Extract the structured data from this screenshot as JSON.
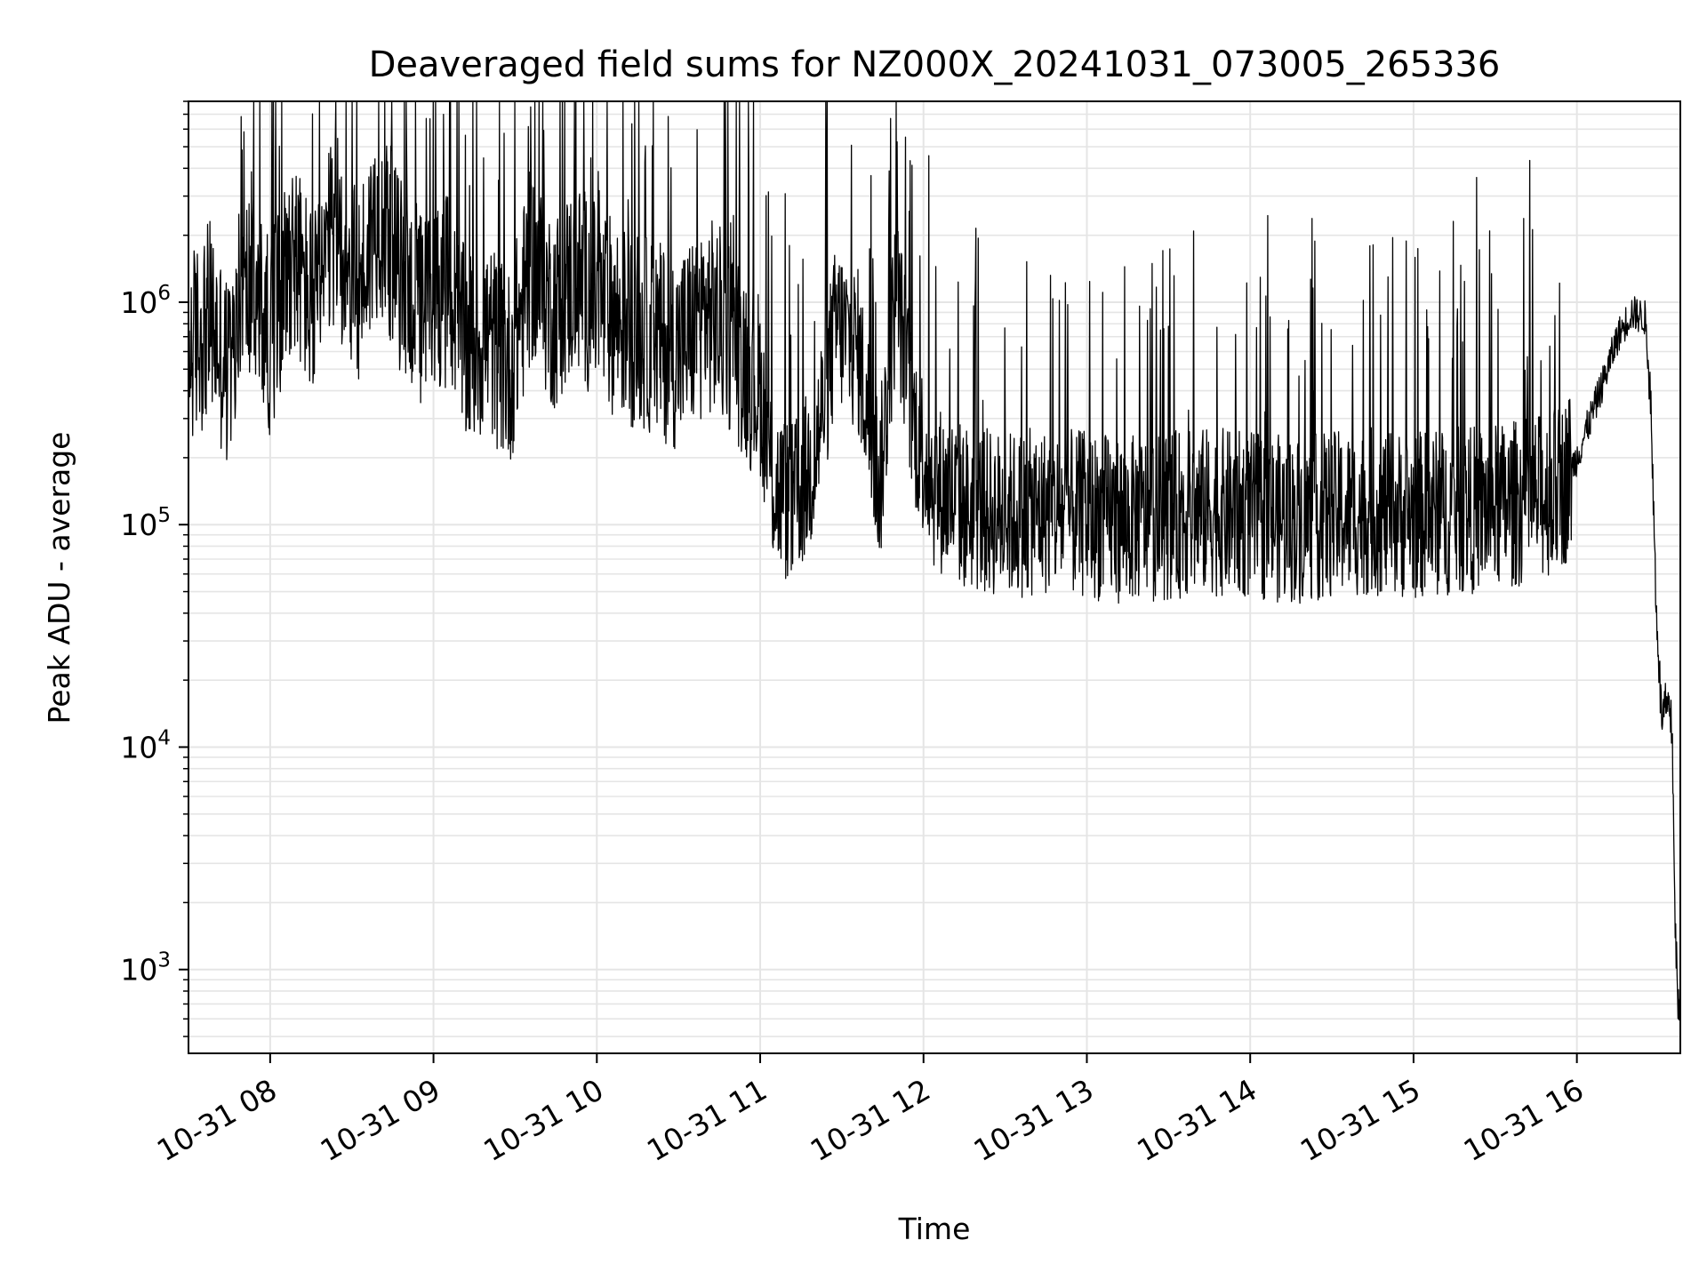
{
  "chart_data": {
    "type": "line",
    "title": "Deaveraged field sums for NZ000X_20241031_073005_265336",
    "xlabel": "Time",
    "ylabel": "Peak ADU - average",
    "yscale": "log",
    "grid": true,
    "line_color": "#000000",
    "grid_color": "#e5e5e5",
    "xlim": [
      "2024-10-31 07:30",
      "2024-10-31 16:38"
    ],
    "ylim": [
      420,
      8000000
    ],
    "x_ticks": [
      {
        "time": "2024-10-31 08:00",
        "label": "10-31 08"
      },
      {
        "time": "2024-10-31 09:00",
        "label": "10-31 09"
      },
      {
        "time": "2024-10-31 10:00",
        "label": "10-31 10"
      },
      {
        "time": "2024-10-31 11:00",
        "label": "10-31 11"
      },
      {
        "time": "2024-10-31 12:00",
        "label": "10-31 12"
      },
      {
        "time": "2024-10-31 13:00",
        "label": "10-31 13"
      },
      {
        "time": "2024-10-31 14:00",
        "label": "10-31 14"
      },
      {
        "time": "2024-10-31 15:00",
        "label": "10-31 15"
      },
      {
        "time": "2024-10-31 16:00",
        "label": "10-31 16"
      }
    ],
    "y_ticks": [
      {
        "value": 1000,
        "base": "10",
        "exp": "3"
      },
      {
        "value": 10000,
        "base": "10",
        "exp": "4"
      },
      {
        "value": 100000,
        "base": "10",
        "exp": "5"
      },
      {
        "value": 1000000,
        "base": "10",
        "exp": "6"
      }
    ],
    "series": [
      {
        "points": [
          [
            "2024-10-31 07:30",
            600000
          ],
          [
            "2024-10-31 07:38",
            850000
          ],
          [
            "2024-10-31 07:45",
            450000
          ],
          [
            "2024-10-31 07:52",
            1200000
          ],
          [
            "2024-10-31 08:00",
            700000
          ],
          [
            "2024-10-31 08:08",
            1800000
          ],
          [
            "2024-10-31 08:16",
            900000
          ],
          [
            "2024-10-31 08:24",
            2200000
          ],
          [
            "2024-10-31 08:32",
            1100000
          ],
          [
            "2024-10-31 08:40",
            2600000
          ],
          [
            "2024-10-31 08:48",
            1300000
          ],
          [
            "2024-10-31 08:56",
            900000
          ],
          [
            "2024-10-31 09:04",
            1200000
          ],
          [
            "2024-10-31 09:12",
            600000
          ],
          [
            "2024-10-31 09:20",
            700000
          ],
          [
            "2024-10-31 09:28",
            500000
          ],
          [
            "2024-10-31 09:36",
            1500000
          ],
          [
            "2024-10-31 09:44",
            900000
          ],
          [
            "2024-10-31 09:52",
            1300000
          ],
          [
            "2024-10-31 10:00",
            1000000
          ],
          [
            "2024-10-31 10:10",
            800000
          ],
          [
            "2024-10-31 10:20",
            700000
          ],
          [
            "2024-10-31 10:30",
            600000
          ],
          [
            "2024-10-31 10:40",
            900000
          ],
          [
            "2024-10-31 10:50",
            700000
          ],
          [
            "2024-10-31 11:00",
            400000
          ],
          [
            "2024-10-31 11:05",
            150000
          ],
          [
            "2024-10-31 11:12",
            120000
          ],
          [
            "2024-10-31 11:20",
            200000
          ],
          [
            "2024-10-31 11:28",
            800000
          ],
          [
            "2024-10-31 11:36",
            600000
          ],
          [
            "2024-10-31 11:44",
            150000
          ],
          [
            "2024-10-31 11:50",
            1200000
          ],
          [
            "2024-10-31 11:56",
            300000
          ],
          [
            "2024-10-31 12:04",
            150000
          ],
          [
            "2024-10-31 12:15",
            120000
          ],
          [
            "2024-10-31 12:30",
            110000
          ],
          [
            "2024-10-31 12:45",
            115000
          ],
          [
            "2024-10-31 13:00",
            110000
          ],
          [
            "2024-10-31 13:15",
            105000
          ],
          [
            "2024-10-31 13:30",
            110000
          ],
          [
            "2024-10-31 13:45",
            115000
          ],
          [
            "2024-10-31 14:00",
            110000
          ],
          [
            "2024-10-31 14:15",
            105000
          ],
          [
            "2024-10-31 14:30",
            110000
          ],
          [
            "2024-10-31 14:45",
            115000
          ],
          [
            "2024-10-31 15:00",
            110000
          ],
          [
            "2024-10-31 15:15",
            115000
          ],
          [
            "2024-10-31 15:30",
            120000
          ],
          [
            "2024-10-31 15:45",
            130000
          ],
          [
            "2024-10-31 15:55",
            150000
          ],
          [
            "2024-10-31 16:00",
            200000
          ],
          [
            "2024-10-31 16:05",
            300000
          ],
          [
            "2024-10-31 16:10",
            450000
          ],
          [
            "2024-10-31 16:15",
            700000
          ],
          [
            "2024-10-31 16:20",
            900000
          ],
          [
            "2024-10-31 16:25",
            850000
          ],
          [
            "2024-10-31 16:27",
            400000
          ],
          [
            "2024-10-31 16:29",
            50000
          ],
          [
            "2024-10-31 16:31",
            14000
          ],
          [
            "2024-10-31 16:33",
            15000
          ],
          [
            "2024-10-31 16:35",
            12000
          ],
          [
            "2024-10-31 16:36",
            2000
          ],
          [
            "2024-10-31 16:37",
            700
          ],
          [
            "2024-10-31 16:38",
            680
          ]
        ],
        "note_range": "noisy envelope"
      }
    ]
  }
}
